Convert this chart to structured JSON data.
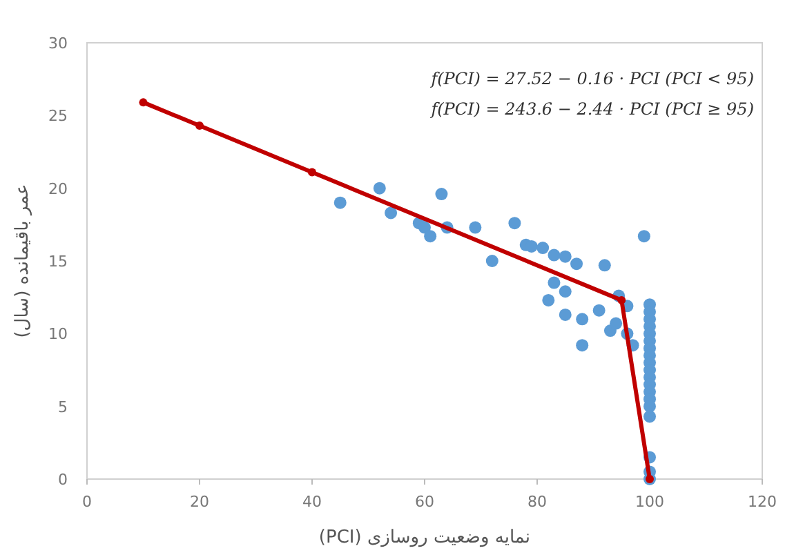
{
  "chart_data": {
    "type": "scatter",
    "xlabel": "نمایه وضعیت روسازی (PCI)",
    "ylabel": "عمر باقیمانده (سال)",
    "annotations": [
      "f(PCI) = 27.52 − 0.16 · PCI (PCI < 95)",
      "f(PCI) = 243.6 − 2.44 · PCI (PCI ≥ 95)"
    ],
    "xlim": [
      0,
      120
    ],
    "xticks": [
      0,
      20,
      40,
      60,
      80,
      100,
      120
    ],
    "ylim": [
      0,
      30
    ],
    "yticks": [
      0,
      5,
      10,
      15,
      20,
      25,
      30
    ],
    "grid": false,
    "series": [
      {
        "type": "scatter",
        "color": "#5b9bd5",
        "marker": "circle",
        "x": [
          45,
          52,
          54,
          59,
          60,
          61,
          63,
          64,
          69,
          72,
          76,
          78,
          79,
          81,
          83,
          85,
          87,
          92,
          83,
          82,
          85,
          85,
          88,
          91,
          88,
          94.5,
          93,
          94,
          96,
          96,
          97,
          99,
          100,
          100,
          100,
          100,
          100,
          100,
          100,
          100,
          100,
          100,
          100,
          100,
          100,
          100,
          100,
          100,
          100,
          100,
          100
        ],
        "values": [
          19,
          20,
          18.3,
          17.6,
          17.3,
          16.7,
          19.6,
          17.3,
          17.3,
          15,
          17.6,
          16.1,
          16,
          15.9,
          15.4,
          15.3,
          14.8,
          14.7,
          13.5,
          12.3,
          12.9,
          11.3,
          11,
          11.6,
          9.2,
          12.6,
          10.2,
          10.7,
          11.9,
          10,
          9.2,
          16.7,
          12,
          11.5,
          11,
          10.5,
          10,
          9.5,
          9,
          8.5,
          8,
          7.5,
          7,
          6.5,
          6,
          5.5,
          5,
          4.3,
          1.5,
          0.5,
          0
        ]
      },
      {
        "type": "line",
        "color": "#c00000",
        "marker": "circle",
        "line_style": "solid",
        "x": [
          10,
          20,
          40,
          95,
          100
        ],
        "values": [
          25.9,
          24.3,
          21.1,
          12.3,
          0
        ]
      }
    ]
  }
}
